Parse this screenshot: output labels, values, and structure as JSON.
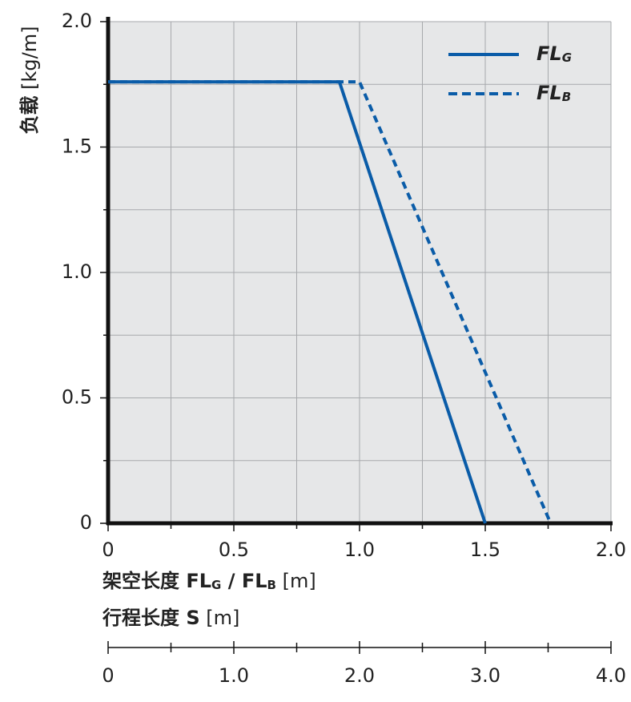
{
  "chart_data": {
    "type": "line",
    "ylabel": [
      {
        "text": "负载",
        "bold": true
      },
      {
        "text": " [kg/m]",
        "bold": false
      }
    ],
    "xlabel": [
      {
        "text": "架空长度 FL",
        "bold": true
      },
      {
        "text": "G",
        "bold": true,
        "sub": true
      },
      {
        "text": " / FL",
        "bold": true
      },
      {
        "text": "B",
        "bold": true,
        "sub": true
      },
      {
        "text": " [m]",
        "bold": false
      }
    ],
    "x2label": [
      {
        "text": "行程长度 S",
        "bold": true
      },
      {
        "text": " [m]",
        "bold": false
      }
    ],
    "series": [
      {
        "name": "FL",
        "subscript": "G",
        "color": "#0a5ca8",
        "dashed": false,
        "x": [
          0,
          0.92,
          1.5
        ],
        "values": [
          1.76,
          1.76,
          0
        ]
      },
      {
        "name": "FL",
        "subscript": "B",
        "color": "#0a5ca8",
        "dashed": true,
        "x": [
          0,
          1.0,
          1.76
        ],
        "values": [
          1.76,
          1.76,
          0
        ]
      }
    ],
    "xlim": [
      0,
      2
    ],
    "ylim": [
      0,
      2
    ],
    "xticks": [
      0,
      0.5,
      {
        "value": 1,
        "label": "1.0"
      },
      1.5,
      {
        "value": 2,
        "label": "2.0"
      }
    ],
    "yticks": [
      0,
      0.5,
      {
        "value": 1,
        "label": "1.0"
      },
      1.5,
      {
        "value": 2,
        "label": "2.0"
      }
    ],
    "minor_xticks": [
      0.25,
      0.75,
      1.25,
      1.75
    ],
    "minor_yticks": [
      0.25,
      0.75,
      1.25,
      1.75
    ],
    "x2lim": [
      0,
      4
    ],
    "x2ticks": [
      0,
      {
        "value": 1,
        "label": "1.0"
      },
      {
        "value": 2,
        "label": "2.0"
      },
      {
        "value": 3,
        "label": "3.0"
      },
      {
        "value": 4,
        "label": "4.0"
      }
    ],
    "minor_x2ticks": [
      0.5,
      1.5,
      2.5,
      3.5
    ],
    "grid": true,
    "legend": "upper right"
  }
}
